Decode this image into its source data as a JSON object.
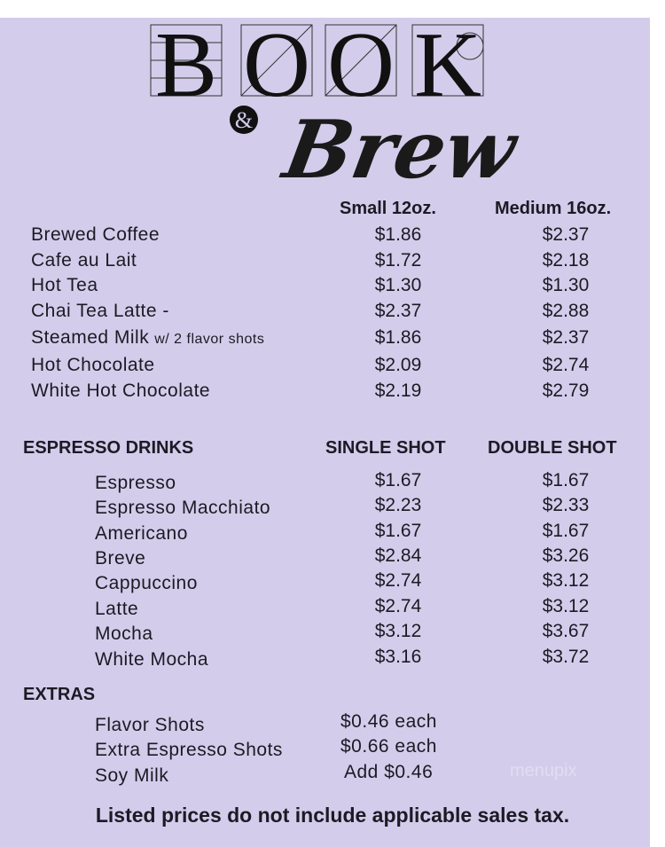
{
  "logo": {
    "word1": "BOOK",
    "ampersand": "&",
    "word2": "Brew"
  },
  "brewed": {
    "headers": {
      "small": "Small 12oz.",
      "medium": "Medium 16oz."
    },
    "items": [
      {
        "name": "Brewed Coffee",
        "small": "$1.86",
        "medium": "$2.37"
      },
      {
        "name": "Cafe au Lait",
        "small": "$1.72",
        "medium": "$2.18"
      },
      {
        "name": "Hot Tea",
        "small": "$1.30",
        "medium": "$1.30"
      },
      {
        "name": "Chai Tea Latte -",
        "small": "$2.37",
        "medium": "$2.88"
      },
      {
        "name": "Steamed Milk",
        "note": "w/ 2 flavor shots",
        "small": "$1.86",
        "medium": "$2.37"
      },
      {
        "name": "Hot Chocolate",
        "small": "$2.09",
        "medium": "$2.74"
      },
      {
        "name": "White Hot Chocolate",
        "small": "$2.19",
        "medium": "$2.79"
      }
    ]
  },
  "espresso": {
    "title": "ESPRESSO DRINKS",
    "headers": {
      "single": "SINGLE SHOT",
      "double": "DOUBLE SHOT"
    },
    "items": [
      {
        "name": "Espresso",
        "single": "$1.67",
        "double": "$1.67"
      },
      {
        "name": "Espresso Macchiato",
        "single": "$2.23",
        "double": "$2.33"
      },
      {
        "name": "Americano",
        "single": "$1.67",
        "double": "$1.67"
      },
      {
        "name": "Breve",
        "single": "$2.84",
        "double": "$3.26"
      },
      {
        "name": "Cappuccino",
        "single": "$2.74",
        "double": "$3.12"
      },
      {
        "name": "Latte",
        "single": "$2.74",
        "double": "$3.12"
      },
      {
        "name": "Mocha",
        "single": "$3.12",
        "double": "$3.67"
      },
      {
        "name": "White Mocha",
        "single": "$3.16",
        "double": "$3.72"
      }
    ]
  },
  "extras": {
    "title": "EXTRAS",
    "items": [
      {
        "name": "Flavor Shots",
        "price": "$0.46 each"
      },
      {
        "name": "Extra Espresso Shots",
        "price": "$0.66 each"
      },
      {
        "name": "Soy Milk",
        "price": "Add $0.46"
      }
    ]
  },
  "footer": "Listed prices do not include applicable sales tax.",
  "watermark": "menupix",
  "colors": {
    "background": "#d3cdeb",
    "text": "#1c1a24"
  }
}
